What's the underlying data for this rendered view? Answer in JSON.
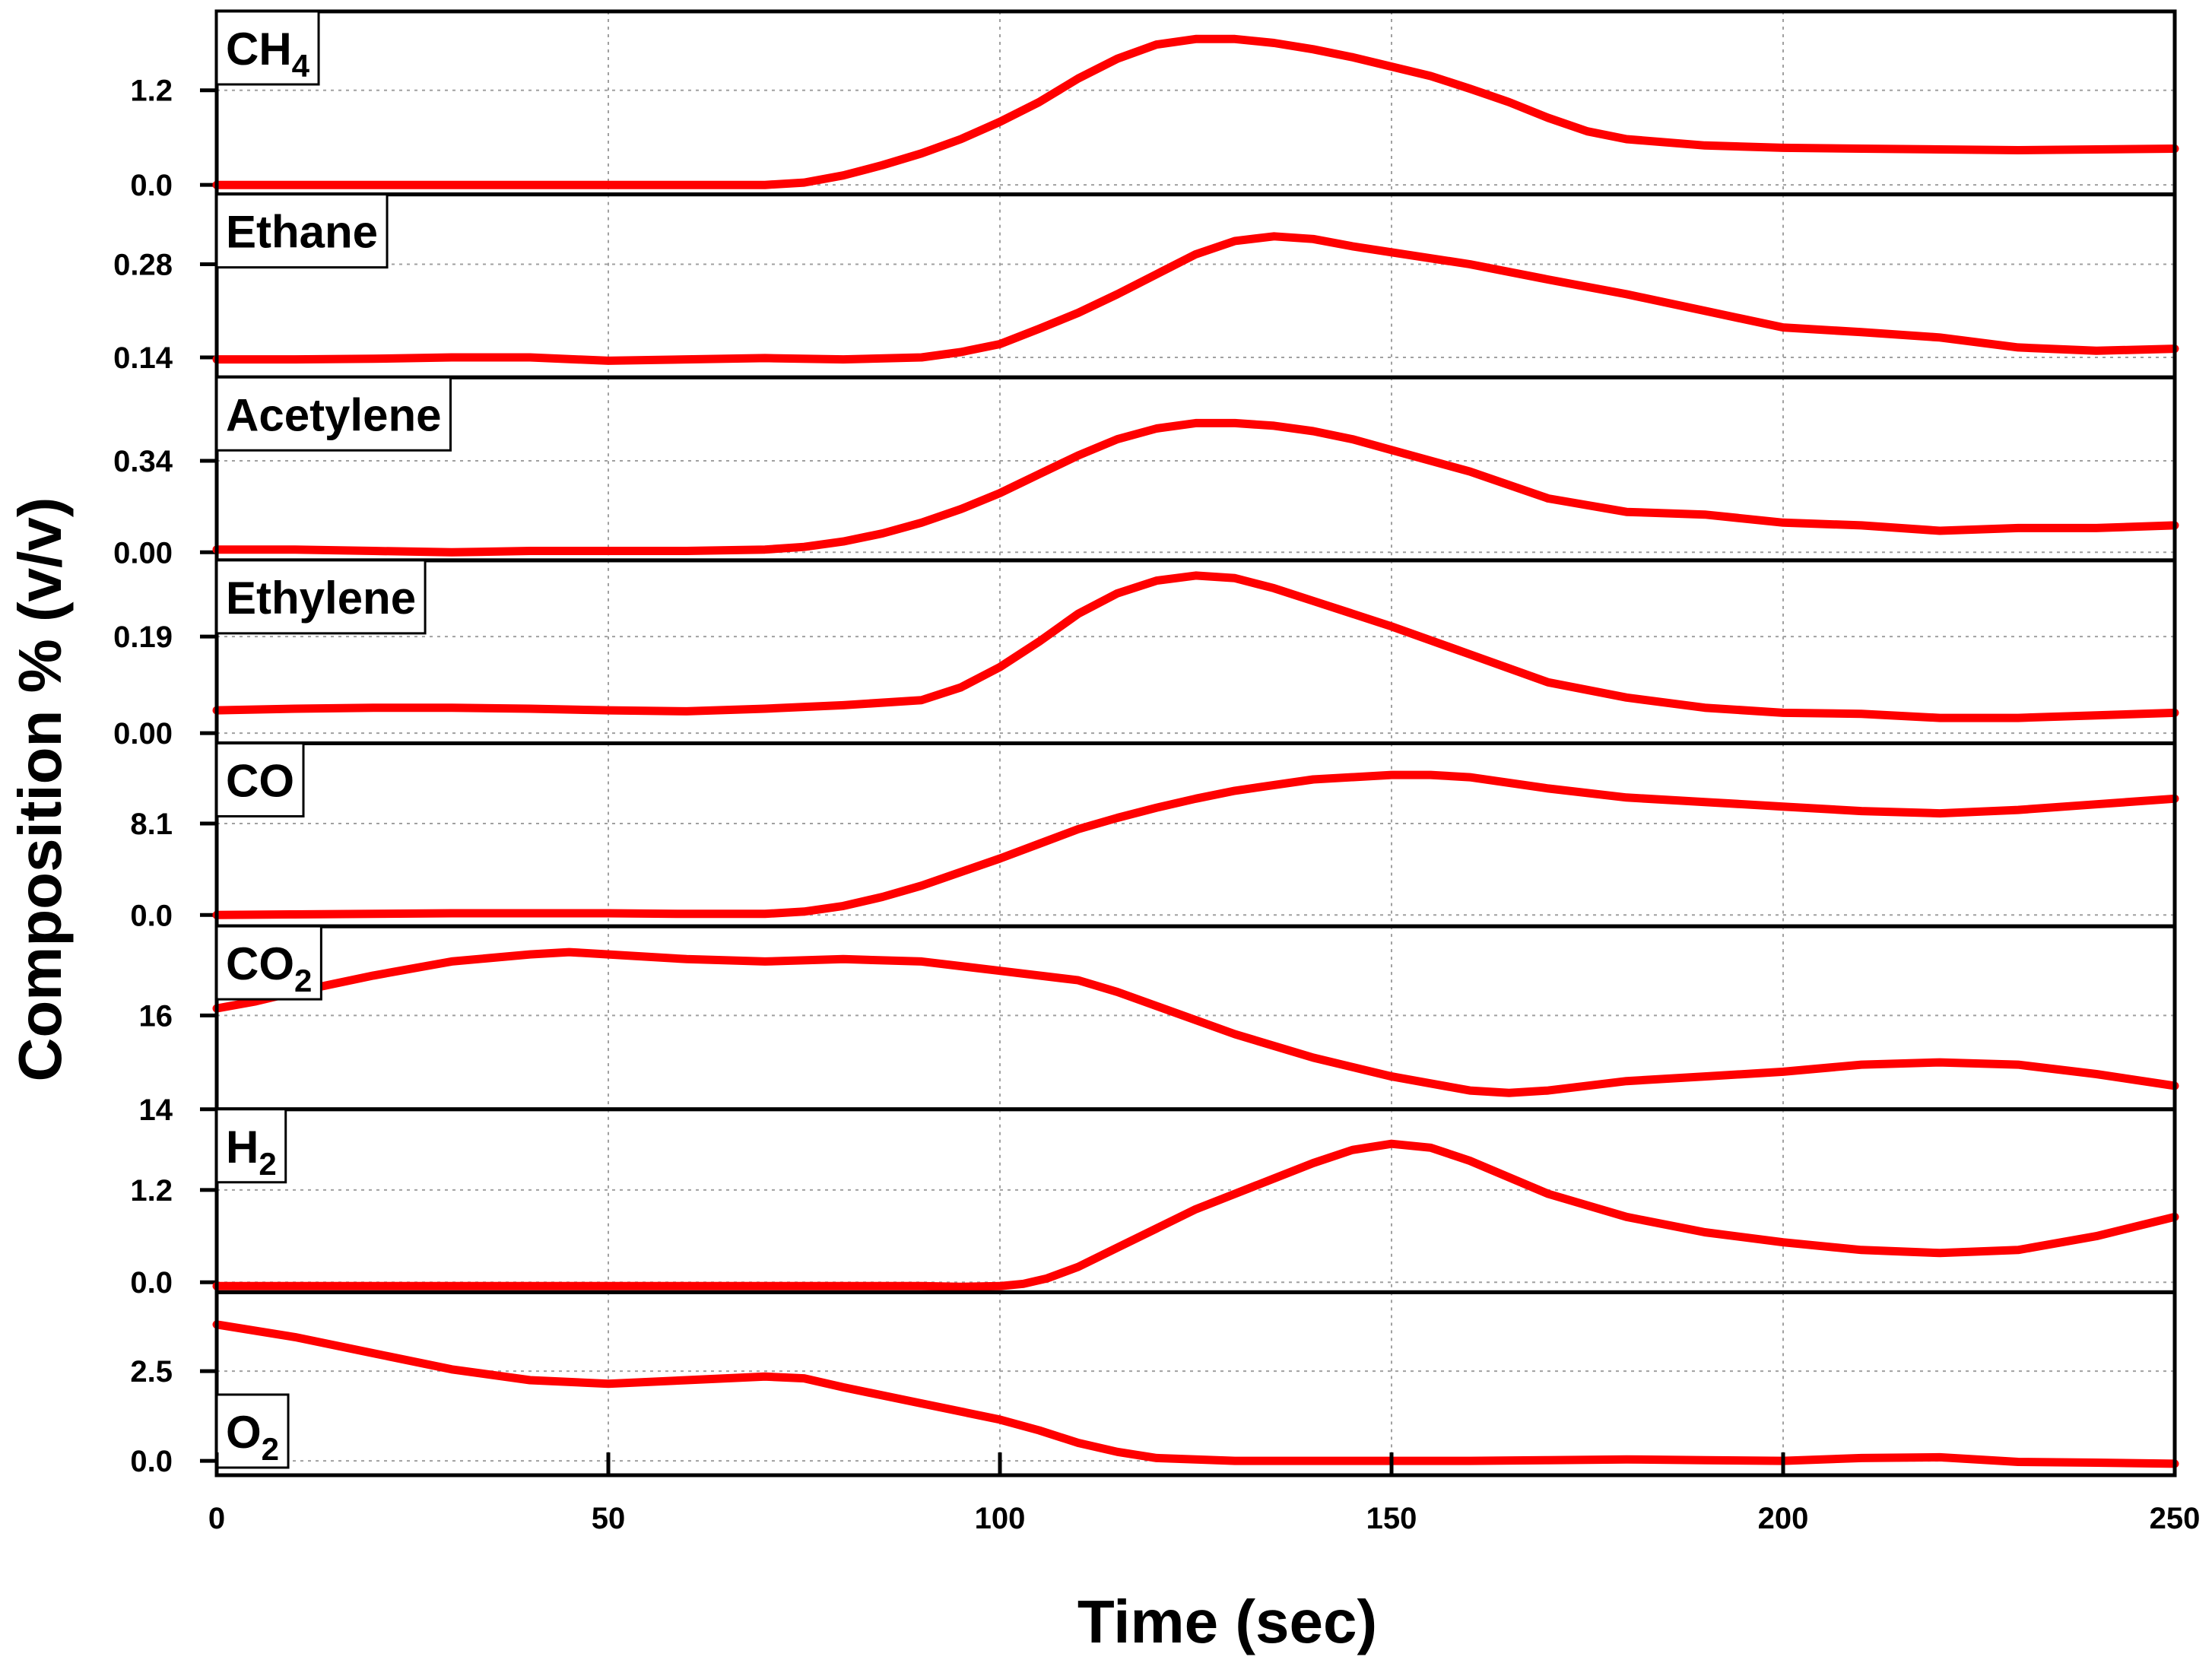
{
  "chart_data": {
    "type": "line",
    "xlabel": "Time (sec)",
    "ylabel": "Composition % (v/v)",
    "xlim": [
      0,
      250
    ],
    "xticks": [
      0,
      50,
      100,
      150,
      200,
      250
    ],
    "x_tick_labels": [
      "0",
      "50",
      "100",
      "150",
      "200",
      "250"
    ],
    "grid": true,
    "line_color": "#ff0000",
    "panels": [
      {
        "name": "CH4",
        "label_main": "CH",
        "label_sub": "4",
        "label_position": "top-left",
        "ylim": [
          -0.12,
          2.2
        ],
        "yticks": [
          0.0,
          1.2
        ],
        "ytick_labels": [
          "0.0",
          "1.2"
        ],
        "x": [
          0,
          10,
          20,
          30,
          40,
          50,
          60,
          70,
          75,
          80,
          85,
          90,
          95,
          100,
          105,
          110,
          115,
          120,
          125,
          130,
          135,
          140,
          145,
          150,
          155,
          160,
          165,
          170,
          175,
          180,
          190,
          200,
          210,
          220,
          230,
          240,
          250
        ],
        "y": [
          0.0,
          0.0,
          0.0,
          0.0,
          0.0,
          0.0,
          0.0,
          0.0,
          0.03,
          0.12,
          0.25,
          0.4,
          0.58,
          0.8,
          1.05,
          1.35,
          1.6,
          1.78,
          1.85,
          1.85,
          1.8,
          1.72,
          1.62,
          1.5,
          1.38,
          1.22,
          1.05,
          0.85,
          0.68,
          0.58,
          0.5,
          0.47,
          0.46,
          0.45,
          0.44,
          0.45,
          0.46
        ]
      },
      {
        "name": "Ethane",
        "label_main": "Ethane",
        "label_sub": "",
        "label_position": "top-left",
        "ylim": [
          0.11,
          0.385
        ],
        "yticks": [
          0.14,
          0.28
        ],
        "ytick_labels": [
          "0.14",
          "0.28"
        ],
        "x": [
          0,
          10,
          20,
          30,
          40,
          50,
          60,
          70,
          80,
          90,
          95,
          100,
          105,
          110,
          115,
          120,
          125,
          130,
          135,
          140,
          145,
          150,
          160,
          170,
          180,
          190,
          200,
          210,
          220,
          230,
          240,
          250
        ],
        "y": [
          0.137,
          0.137,
          0.138,
          0.14,
          0.14,
          0.135,
          0.137,
          0.139,
          0.137,
          0.14,
          0.148,
          0.16,
          0.183,
          0.207,
          0.235,
          0.265,
          0.295,
          0.315,
          0.322,
          0.318,
          0.307,
          0.298,
          0.28,
          0.257,
          0.235,
          0.21,
          0.185,
          0.178,
          0.17,
          0.155,
          0.15,
          0.153
        ]
      },
      {
        "name": "Acetylene",
        "label_main": "Acetylene",
        "label_sub": "",
        "label_position": "top-left",
        "ylim": [
          -0.03,
          0.65
        ],
        "yticks": [
          0.0,
          0.34
        ],
        "ytick_labels": [
          "0.00",
          "0.34"
        ],
        "x": [
          0,
          10,
          20,
          30,
          40,
          50,
          60,
          70,
          75,
          80,
          85,
          90,
          95,
          100,
          105,
          110,
          115,
          120,
          125,
          130,
          135,
          140,
          145,
          150,
          160,
          170,
          180,
          190,
          200,
          210,
          220,
          230,
          240,
          250
        ],
        "y": [
          0.01,
          0.01,
          0.005,
          0.0,
          0.005,
          0.005,
          0.005,
          0.01,
          0.02,
          0.04,
          0.07,
          0.11,
          0.16,
          0.22,
          0.29,
          0.36,
          0.42,
          0.46,
          0.48,
          0.48,
          0.47,
          0.45,
          0.42,
          0.38,
          0.3,
          0.2,
          0.15,
          0.14,
          0.11,
          0.1,
          0.08,
          0.09,
          0.09,
          0.1
        ]
      },
      {
        "name": "Ethylene",
        "label_main": "Ethylene",
        "label_sub": "",
        "label_position": "top-left",
        "ylim": [
          -0.02,
          0.34
        ],
        "yticks": [
          0.0,
          0.19
        ],
        "ytick_labels": [
          "0.00",
          "0.19"
        ],
        "x": [
          0,
          10,
          20,
          30,
          40,
          50,
          60,
          70,
          80,
          90,
          95,
          100,
          105,
          110,
          115,
          120,
          125,
          130,
          135,
          140,
          150,
          160,
          170,
          180,
          190,
          200,
          210,
          220,
          230,
          240,
          250
        ],
        "y": [
          0.045,
          0.048,
          0.05,
          0.05,
          0.048,
          0.045,
          0.043,
          0.048,
          0.055,
          0.065,
          0.09,
          0.13,
          0.18,
          0.235,
          0.275,
          0.3,
          0.31,
          0.305,
          0.285,
          0.26,
          0.21,
          0.155,
          0.1,
          0.07,
          0.05,
          0.04,
          0.038,
          0.03,
          0.03,
          0.035,
          0.04
        ]
      },
      {
        "name": "CO",
        "label_main": "CO",
        "label_sub": "",
        "label_position": "top-left",
        "ylim": [
          -1.0,
          15.2
        ],
        "yticks": [
          0.0,
          8.1
        ],
        "ytick_labels": [
          "0.0",
          "8.1"
        ],
        "x": [
          0,
          10,
          20,
          30,
          40,
          50,
          60,
          70,
          75,
          80,
          85,
          90,
          95,
          100,
          105,
          110,
          115,
          120,
          125,
          130,
          140,
          150,
          155,
          160,
          170,
          180,
          190,
          200,
          210,
          220,
          230,
          240,
          250
        ],
        "y": [
          0.0,
          0.05,
          0.1,
          0.15,
          0.15,
          0.15,
          0.1,
          0.1,
          0.3,
          0.8,
          1.6,
          2.6,
          3.8,
          5.0,
          6.3,
          7.6,
          8.6,
          9.5,
          10.3,
          11.0,
          12.0,
          12.4,
          12.4,
          12.2,
          11.2,
          10.4,
          10.0,
          9.6,
          9.2,
          9.0,
          9.3,
          9.8,
          10.3
        ]
      },
      {
        "name": "CO2",
        "label_main": "CO",
        "label_sub": "2",
        "label_position": "top-left",
        "ylim": [
          14.0,
          17.9
        ],
        "yticks": [
          14,
          16
        ],
        "ytick_labels": [
          "14",
          "16"
        ],
        "x": [
          0,
          5,
          10,
          20,
          30,
          40,
          45,
          50,
          60,
          70,
          80,
          90,
          100,
          110,
          115,
          120,
          130,
          140,
          150,
          160,
          165,
          170,
          180,
          190,
          200,
          210,
          220,
          230,
          240,
          250
        ],
        "y": [
          16.15,
          16.3,
          16.5,
          16.85,
          17.15,
          17.3,
          17.35,
          17.3,
          17.2,
          17.15,
          17.2,
          17.15,
          16.95,
          16.75,
          16.5,
          16.2,
          15.6,
          15.1,
          14.7,
          14.4,
          14.35,
          14.4,
          14.6,
          14.7,
          14.8,
          14.95,
          15.0,
          14.95,
          14.75,
          14.5
        ]
      },
      {
        "name": "H2",
        "label_main": "H",
        "label_sub": "2",
        "label_position": "top-left",
        "ylim": [
          -0.13,
          2.25
        ],
        "yticks": [
          0.0,
          1.2
        ],
        "ytick_labels": [
          "0.0",
          "1.2"
        ],
        "x": [
          0,
          20,
          40,
          60,
          80,
          90,
          95,
          100,
          103,
          106,
          110,
          115,
          120,
          125,
          130,
          135,
          140,
          145,
          150,
          155,
          160,
          170,
          180,
          190,
          200,
          210,
          220,
          230,
          240,
          250
        ],
        "y": [
          -0.05,
          -0.05,
          -0.05,
          -0.05,
          -0.05,
          -0.05,
          -0.06,
          -0.05,
          -0.02,
          0.05,
          0.2,
          0.45,
          0.7,
          0.95,
          1.15,
          1.35,
          1.55,
          1.72,
          1.8,
          1.75,
          1.58,
          1.15,
          0.85,
          0.65,
          0.52,
          0.42,
          0.38,
          0.42,
          0.6,
          0.85
        ]
      },
      {
        "name": "O2",
        "label_main": "O",
        "label_sub": "2",
        "label_position": "bottom-left",
        "ylim": [
          -0.4,
          4.7
        ],
        "yticks": [
          0.0,
          2.5
        ],
        "ytick_labels": [
          "0.0",
          "2.5"
        ],
        "x": [
          0,
          10,
          20,
          30,
          40,
          50,
          60,
          70,
          75,
          80,
          90,
          100,
          105,
          110,
          115,
          120,
          130,
          140,
          150,
          160,
          170,
          180,
          190,
          200,
          210,
          220,
          230,
          240,
          250
        ],
        "y": [
          3.8,
          3.45,
          3.0,
          2.55,
          2.25,
          2.15,
          2.25,
          2.35,
          2.3,
          2.05,
          1.6,
          1.15,
          0.85,
          0.5,
          0.25,
          0.08,
          0.0,
          0.0,
          0.0,
          0.0,
          0.02,
          0.04,
          0.02,
          0.0,
          0.08,
          0.1,
          -0.03,
          -0.05,
          -0.08
        ]
      }
    ]
  }
}
